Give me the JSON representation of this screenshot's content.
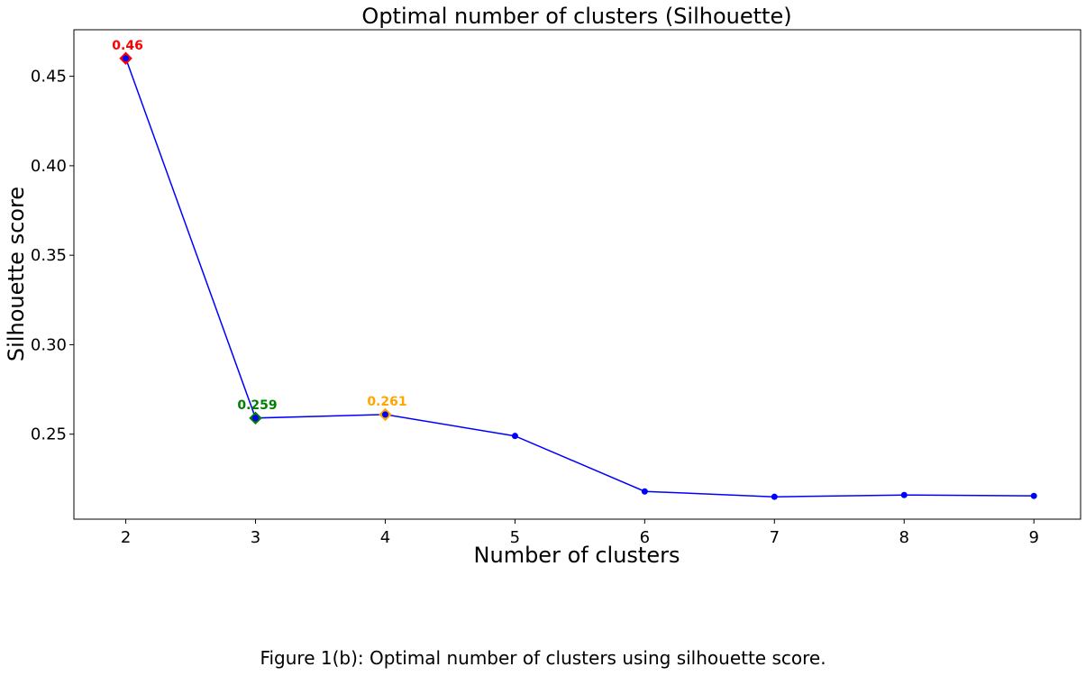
{
  "chart_data": {
    "type": "line",
    "title": "Optimal number of clusters (Silhouette)",
    "xlabel": "Number of clusters",
    "ylabel": "Silhouette score",
    "x": [
      2,
      3,
      4,
      5,
      6,
      7,
      8,
      9
    ],
    "y": [
      0.46,
      0.259,
      0.261,
      0.249,
      0.218,
      0.215,
      0.216,
      0.2155
    ],
    "xlim": [
      1.6,
      9.36
    ],
    "ylim": [
      0.2025,
      0.476
    ],
    "x_ticks": [
      2,
      3,
      4,
      5,
      6,
      7,
      8,
      9
    ],
    "y_ticks": [
      "0.25",
      "0.30",
      "0.35",
      "0.40",
      "0.45"
    ],
    "line_color": "#0000ff",
    "grid": false,
    "highlights": [
      {
        "x": 2,
        "y": 0.46,
        "label": "0.46",
        "color": "#ff0000"
      },
      {
        "x": 3,
        "y": 0.259,
        "label": "0.259",
        "color": "#008000"
      },
      {
        "x": 4,
        "y": 0.261,
        "label": "0.261",
        "color": "#ffa500"
      }
    ]
  },
  "caption": "Figure 1(b): Optimal number of clusters using silhouette score."
}
